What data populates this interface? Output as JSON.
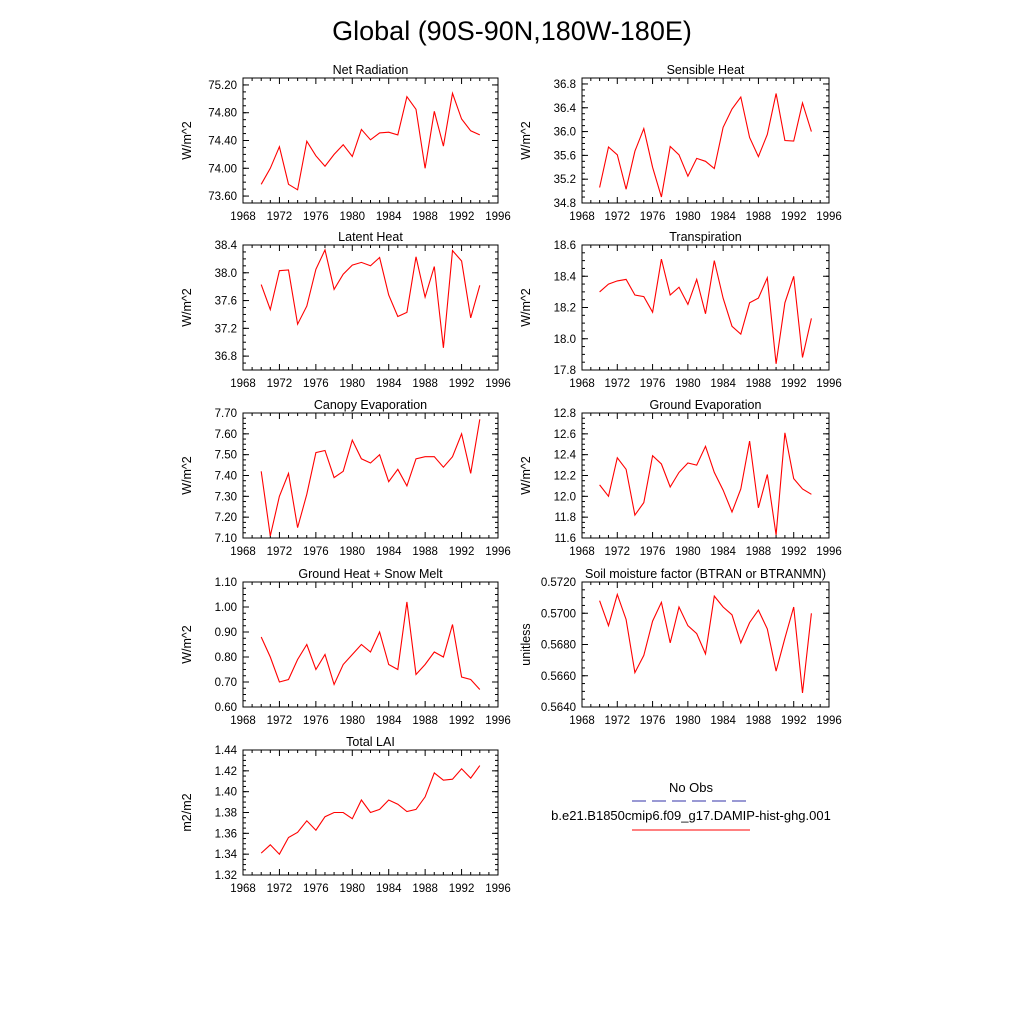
{
  "figure_title": "Global (90S-90N,180W-180E)",
  "legend": {
    "obs_label": "No Obs",
    "obs_color": "#3333aa",
    "model_label": "b.e21.B1850cmip6.f09_g17.DAMIP-hist-ghg.001",
    "model_color": "#ff0000"
  },
  "chart_data": [
    {
      "type": "line",
      "title": "Net Radiation",
      "ylabel": "W/m^2",
      "xlim": [
        1968,
        1996
      ],
      "ylim": [
        73.5,
        75.3
      ],
      "xticks": [
        1968,
        1972,
        1976,
        1980,
        1984,
        1988,
        1992,
        1996
      ],
      "yticks": [
        73.6,
        74.0,
        74.4,
        74.8,
        75.2
      ],
      "ytick_labels": [
        "73.60",
        "74.00",
        "74.40",
        "74.80",
        "75.20"
      ],
      "x": [
        1970,
        1971,
        1972,
        1973,
        1974,
        1975,
        1976,
        1977,
        1978,
        1979,
        1980,
        1981,
        1982,
        1983,
        1984,
        1985,
        1986,
        1987,
        1988,
        1989,
        1990,
        1991,
        1992,
        1993,
        1994
      ],
      "series": [
        {
          "values": [
            73.77,
            74.0,
            74.31,
            73.77,
            73.69,
            74.39,
            74.18,
            74.03,
            74.2,
            74.34,
            74.17,
            74.56,
            74.41,
            74.51,
            74.52,
            74.48,
            75.03,
            74.85,
            74.0,
            74.82,
            74.32,
            75.08,
            74.71,
            74.54,
            74.48
          ],
          "color": "#ff0000"
        }
      ]
    },
    {
      "type": "line",
      "title": "Sensible Heat",
      "ylabel": "W/m^2",
      "xlim": [
        1968,
        1996
      ],
      "ylim": [
        34.8,
        36.9
      ],
      "xticks": [
        1968,
        1972,
        1976,
        1980,
        1984,
        1988,
        1992,
        1996
      ],
      "yticks": [
        34.8,
        35.2,
        35.6,
        36.0,
        36.4,
        36.8
      ],
      "ytick_labels": [
        "34.8",
        "35.2",
        "35.6",
        "36.0",
        "36.4",
        "36.8"
      ],
      "x": [
        1970,
        1971,
        1972,
        1973,
        1974,
        1975,
        1976,
        1977,
        1978,
        1979,
        1980,
        1981,
        1982,
        1983,
        1984,
        1985,
        1986,
        1987,
        1988,
        1989,
        1990,
        1991,
        1992,
        1993,
        1994
      ],
      "series": [
        {
          "values": [
            35.06,
            35.74,
            35.61,
            35.03,
            35.67,
            36.05,
            35.4,
            34.9,
            35.75,
            35.61,
            35.25,
            35.55,
            35.5,
            35.38,
            36.07,
            36.38,
            36.58,
            35.9,
            35.58,
            35.95,
            36.64,
            35.85,
            35.84,
            36.48,
            36.0
          ],
          "color": "#ff0000"
        }
      ]
    },
    {
      "type": "line",
      "title": "Latent Heat",
      "ylabel": "W/m^2",
      "xlim": [
        1968,
        1996
      ],
      "ylim": [
        36.6,
        38.4
      ],
      "xticks": [
        1968,
        1972,
        1976,
        1980,
        1984,
        1988,
        1992,
        1996
      ],
      "yticks": [
        36.8,
        37.2,
        37.6,
        38.0,
        38.4
      ],
      "ytick_labels": [
        "36.8",
        "37.2",
        "37.6",
        "38.0",
        "38.4"
      ],
      "x": [
        1970,
        1971,
        1972,
        1973,
        1974,
        1975,
        1976,
        1977,
        1978,
        1979,
        1980,
        1981,
        1982,
        1983,
        1984,
        1985,
        1986,
        1987,
        1988,
        1989,
        1990,
        1991,
        1992,
        1993,
        1994
      ],
      "series": [
        {
          "values": [
            37.83,
            37.47,
            38.03,
            38.04,
            37.26,
            37.52,
            38.05,
            38.33,
            37.76,
            37.98,
            38.11,
            38.15,
            38.1,
            38.22,
            37.68,
            37.37,
            37.43,
            38.23,
            37.65,
            38.09,
            36.92,
            38.32,
            38.17,
            37.35,
            37.82
          ],
          "color": "#ff0000"
        }
      ]
    },
    {
      "type": "line",
      "title": "Transpiration",
      "ylabel": "W/m^2",
      "xlim": [
        1968,
        1996
      ],
      "ylim": [
        17.8,
        18.6
      ],
      "xticks": [
        1968,
        1972,
        1976,
        1980,
        1984,
        1988,
        1992,
        1996
      ],
      "yticks": [
        17.8,
        18.0,
        18.2,
        18.4,
        18.6
      ],
      "ytick_labels": [
        "17.8",
        "18.0",
        "18.2",
        "18.4",
        "18.6"
      ],
      "x": [
        1970,
        1971,
        1972,
        1973,
        1974,
        1975,
        1976,
        1977,
        1978,
        1979,
        1980,
        1981,
        1982,
        1983,
        1984,
        1985,
        1986,
        1987,
        1988,
        1989,
        1990,
        1991,
        1992,
        1993,
        1994
      ],
      "series": [
        {
          "values": [
            18.3,
            18.35,
            18.37,
            18.38,
            18.28,
            18.27,
            18.17,
            18.51,
            18.28,
            18.33,
            18.22,
            18.38,
            18.16,
            18.5,
            18.26,
            18.08,
            18.03,
            18.23,
            18.26,
            18.39,
            17.84,
            18.23,
            18.4,
            17.88,
            18.13
          ],
          "color": "#ff0000"
        }
      ]
    },
    {
      "type": "line",
      "title": "Canopy Evaporation",
      "ylabel": "W/m^2",
      "xlim": [
        1968,
        1996
      ],
      "ylim": [
        7.1,
        7.7
      ],
      "xticks": [
        1968,
        1972,
        1976,
        1980,
        1984,
        1988,
        1992,
        1996
      ],
      "yticks": [
        7.1,
        7.2,
        7.3,
        7.4,
        7.5,
        7.6,
        7.7
      ],
      "ytick_labels": [
        "7.10",
        "7.20",
        "7.30",
        "7.40",
        "7.50",
        "7.60",
        "7.70"
      ],
      "x": [
        1970,
        1971,
        1972,
        1973,
        1974,
        1975,
        1976,
        1977,
        1978,
        1979,
        1980,
        1981,
        1982,
        1983,
        1984,
        1985,
        1986,
        1987,
        1988,
        1989,
        1990,
        1991,
        1992,
        1993,
        1994
      ],
      "series": [
        {
          "values": [
            7.42,
            7.11,
            7.3,
            7.41,
            7.15,
            7.31,
            7.51,
            7.52,
            7.39,
            7.42,
            7.57,
            7.48,
            7.46,
            7.5,
            7.37,
            7.43,
            7.35,
            7.48,
            7.49,
            7.49,
            7.44,
            7.49,
            7.6,
            7.41,
            7.67
          ],
          "color": "#ff0000"
        }
      ]
    },
    {
      "type": "line",
      "title": "Ground Evaporation",
      "ylabel": "W/m^2",
      "xlim": [
        1968,
        1996
      ],
      "ylim": [
        11.6,
        12.8
      ],
      "xticks": [
        1968,
        1972,
        1976,
        1980,
        1984,
        1988,
        1992,
        1996
      ],
      "yticks": [
        11.6,
        11.8,
        12.0,
        12.2,
        12.4,
        12.6,
        12.8
      ],
      "ytick_labels": [
        "11.6",
        "11.8",
        "12.0",
        "12.2",
        "12.4",
        "12.6",
        "12.8"
      ],
      "x": [
        1970,
        1971,
        1972,
        1973,
        1974,
        1975,
        1976,
        1977,
        1978,
        1979,
        1980,
        1981,
        1982,
        1983,
        1984,
        1985,
        1986,
        1987,
        1988,
        1989,
        1990,
        1991,
        1992,
        1993,
        1994
      ],
      "series": [
        {
          "values": [
            12.11,
            12.0,
            12.37,
            12.26,
            11.82,
            11.94,
            12.39,
            12.31,
            12.09,
            12.23,
            12.32,
            12.3,
            12.48,
            12.23,
            12.06,
            11.85,
            12.07,
            12.53,
            11.89,
            12.21,
            11.63,
            12.61,
            12.17,
            12.07,
            12.02
          ],
          "color": "#ff0000"
        }
      ]
    },
    {
      "type": "line",
      "title": "Ground Heat + Snow Melt",
      "ylabel": "W/m^2",
      "xlim": [
        1968,
        1996
      ],
      "ylim": [
        0.6,
        1.1
      ],
      "xticks": [
        1968,
        1972,
        1976,
        1980,
        1984,
        1988,
        1992,
        1996
      ],
      "yticks": [
        0.6,
        0.7,
        0.8,
        0.9,
        1.0,
        1.1
      ],
      "ytick_labels": [
        "0.60",
        "0.70",
        "0.80",
        "0.90",
        "1.00",
        "1.10"
      ],
      "x": [
        1970,
        1971,
        1972,
        1973,
        1974,
        1975,
        1976,
        1977,
        1978,
        1979,
        1980,
        1981,
        1982,
        1983,
        1984,
        1985,
        1986,
        1987,
        1988,
        1989,
        1990,
        1991,
        1992,
        1993,
        1994
      ],
      "series": [
        {
          "values": [
            0.88,
            0.8,
            0.7,
            0.71,
            0.79,
            0.85,
            0.75,
            0.81,
            0.69,
            0.77,
            0.81,
            0.85,
            0.82,
            0.9,
            0.77,
            0.75,
            1.02,
            0.73,
            0.77,
            0.82,
            0.8,
            0.93,
            0.72,
            0.71,
            0.67
          ],
          "color": "#ff0000"
        }
      ]
    },
    {
      "type": "line",
      "title": "Soil moisture factor (BTRAN or BTRANMN)",
      "ylabel": "unitless",
      "xlim": [
        1968,
        1996
      ],
      "ylim": [
        0.564,
        0.572
      ],
      "xticks": [
        1968,
        1972,
        1976,
        1980,
        1984,
        1988,
        1992,
        1996
      ],
      "yticks": [
        0.564,
        0.566,
        0.568,
        0.57,
        0.572
      ],
      "ytick_labels": [
        "0.5640",
        "0.5660",
        "0.5680",
        "0.5700",
        "0.5720"
      ],
      "x": [
        1970,
        1971,
        1972,
        1973,
        1974,
        1975,
        1976,
        1977,
        1978,
        1979,
        1980,
        1981,
        1982,
        1983,
        1984,
        1985,
        1986,
        1987,
        1988,
        1989,
        1990,
        1991,
        1992,
        1993,
        1994
      ],
      "series": [
        {
          "values": [
            0.5708,
            0.5692,
            0.5712,
            0.5696,
            0.5662,
            0.5673,
            0.5695,
            0.5707,
            0.5681,
            0.5704,
            0.5692,
            0.5687,
            0.5674,
            0.5711,
            0.5704,
            0.5699,
            0.5681,
            0.5694,
            0.5702,
            0.569,
            0.5663,
            0.5684,
            0.5704,
            0.5649,
            0.57
          ],
          "color": "#ff0000"
        }
      ]
    },
    {
      "type": "line",
      "title": "Total LAI",
      "ylabel": "m2/m2",
      "xlim": [
        1968,
        1996
      ],
      "ylim": [
        1.32,
        1.44
      ],
      "xticks": [
        1968,
        1972,
        1976,
        1980,
        1984,
        1988,
        1992,
        1996
      ],
      "yticks": [
        1.32,
        1.34,
        1.36,
        1.38,
        1.4,
        1.42,
        1.44
      ],
      "ytick_labels": [
        "1.32",
        "1.34",
        "1.36",
        "1.38",
        "1.40",
        "1.42",
        "1.44"
      ],
      "x": [
        1970,
        1971,
        1972,
        1973,
        1974,
        1975,
        1976,
        1977,
        1978,
        1979,
        1980,
        1981,
        1982,
        1983,
        1984,
        1985,
        1986,
        1987,
        1988,
        1989,
        1990,
        1991,
        1992,
        1993,
        1994
      ],
      "series": [
        {
          "values": [
            1.341,
            1.349,
            1.34,
            1.356,
            1.361,
            1.372,
            1.363,
            1.376,
            1.38,
            1.38,
            1.374,
            1.392,
            1.38,
            1.383,
            1.392,
            1.388,
            1.381,
            1.383,
            1.395,
            1.418,
            1.411,
            1.412,
            1.422,
            1.413,
            1.425
          ],
          "color": "#ff0000"
        }
      ]
    }
  ]
}
